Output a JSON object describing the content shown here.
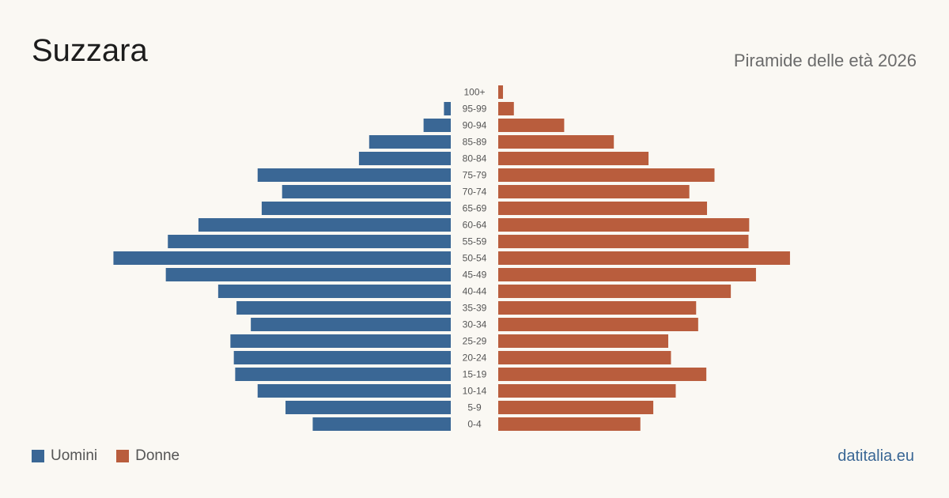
{
  "header": {
    "title": "Suzzara",
    "subtitle": "Piramide delle età 2026"
  },
  "legend": {
    "men_label": "Uomini",
    "women_label": "Donne"
  },
  "source": "datitalia.eu",
  "colors": {
    "men": "#3a6795",
    "women": "#b95d3d"
  },
  "chart_data": {
    "type": "bar",
    "orientation": "horizontal-pyramid",
    "categories": [
      "100+",
      "95-99",
      "90-94",
      "85-89",
      "80-84",
      "75-79",
      "70-74",
      "65-69",
      "60-64",
      "55-59",
      "50-54",
      "45-49",
      "40-44",
      "35-39",
      "30-34",
      "25-29",
      "20-24",
      "15-19",
      "10-14",
      "5-9",
      "0-4"
    ],
    "series": [
      {
        "name": "Uomini",
        "values": [
          0,
          10,
          40,
          120,
          135,
          284,
          248,
          278,
          371,
          416,
          496,
          419,
          342,
          315,
          294,
          324,
          319,
          317,
          284,
          243,
          203
        ]
      },
      {
        "name": "Donne",
        "values": [
          7,
          23,
          97,
          170,
          221,
          318,
          281,
          307,
          369,
          368,
          429,
          379,
          342,
          291,
          294,
          250,
          254,
          306,
          261,
          228,
          209
        ]
      }
    ]
  }
}
